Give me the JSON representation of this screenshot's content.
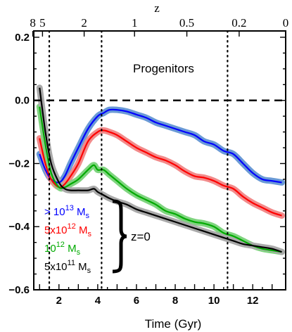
{
  "chart_data": {
    "type": "line",
    "title": "",
    "xlabel": "Time (Gyr)",
    "ylabel": "",
    "top_axis_label": "z",
    "top_ticks": [
      {
        "label": "8",
        "t": 0.65
      },
      {
        "label": "5",
        "t": 1.15
      },
      {
        "label": "2",
        "t": 3.3
      },
      {
        "label": "1",
        "t": 5.9
      },
      {
        "label": "0.5",
        "t": 8.6
      },
      {
        "label": "0.2",
        "t": 11.3
      },
      {
        "label": "0",
        "t": 13.7
      }
    ],
    "xlim": [
      0.7,
      13.7
    ],
    "ylim": [
      -0.6,
      0.22
    ],
    "x_ticks": [
      2,
      4,
      6,
      8,
      10,
      12
    ],
    "y_ticks": [
      -0.6,
      -0.4,
      -0.2,
      0.0,
      0.2
    ],
    "y_tick_labels": [
      "−0.6",
      "−0.4",
      "−0.2",
      "0.0",
      "0.2"
    ],
    "reference_line_y": 0.0,
    "vertical_lines_x": [
      1.5,
      4.2,
      10.7
    ],
    "annotation": "Progenitors",
    "bracket_label": "z=0",
    "series": [
      {
        "name_parts": [
          "> 10",
          "13",
          " M",
          "s"
        ],
        "color": "#0000ff",
        "band": "#6a9ad6",
        "x": [
          1.0,
          1.3,
          1.6,
          2.0,
          2.3,
          2.6,
          3.0,
          3.5,
          4.0,
          4.3,
          4.6,
          5.0,
          5.5,
          6.0,
          6.5,
          7.0,
          7.5,
          8.0,
          8.5,
          9.0,
          9.5,
          10.0,
          10.5,
          11.0,
          11.5,
          12.0,
          12.5,
          13.0,
          13.5
        ],
        "y": [
          -0.17,
          -0.22,
          -0.25,
          -0.26,
          -0.24,
          -0.2,
          -0.15,
          -0.09,
          -0.05,
          -0.04,
          -0.03,
          -0.03,
          -0.035,
          -0.045,
          -0.055,
          -0.07,
          -0.08,
          -0.09,
          -0.1,
          -0.11,
          -0.13,
          -0.14,
          -0.16,
          -0.17,
          -0.2,
          -0.23,
          -0.25,
          -0.255,
          -0.26
        ]
      },
      {
        "name_parts": [
          "5x10",
          "12",
          " M",
          "s"
        ],
        "color": "#ff0000",
        "band": "#f28b8b",
        "x": [
          1.0,
          1.3,
          1.6,
          2.0,
          2.3,
          2.6,
          3.0,
          3.5,
          4.0,
          4.3,
          4.6,
          5.0,
          5.5,
          6.0,
          6.5,
          7.0,
          7.5,
          8.0,
          8.5,
          9.0,
          9.5,
          10.0,
          10.5,
          11.0,
          11.5,
          12.0,
          12.5,
          13.0,
          13.5
        ],
        "y": [
          -0.12,
          -0.2,
          -0.25,
          -0.275,
          -0.265,
          -0.24,
          -0.2,
          -0.13,
          -0.1,
          -0.095,
          -0.1,
          -0.11,
          -0.13,
          -0.15,
          -0.165,
          -0.18,
          -0.19,
          -0.205,
          -0.225,
          -0.24,
          -0.245,
          -0.255,
          -0.27,
          -0.28,
          -0.305,
          -0.325,
          -0.34,
          -0.355,
          -0.365
        ]
      },
      {
        "name_parts": [
          "10",
          "12",
          " M",
          "s"
        ],
        "color": "#00aa00",
        "band": "#7fd47f",
        "x": [
          1.0,
          1.3,
          1.6,
          2.0,
          2.3,
          2.6,
          3.0,
          3.5,
          3.8,
          4.0,
          4.3,
          4.6,
          5.0,
          5.5,
          6.0,
          6.5,
          7.0,
          7.5,
          8.0,
          8.5,
          9.0,
          9.5,
          10.0,
          10.5,
          11.0,
          11.5,
          12.0,
          12.5,
          13.0,
          13.5
        ],
        "y": [
          -0.02,
          -0.14,
          -0.23,
          -0.275,
          -0.275,
          -0.265,
          -0.25,
          -0.22,
          -0.205,
          -0.22,
          -0.22,
          -0.235,
          -0.255,
          -0.28,
          -0.3,
          -0.315,
          -0.33,
          -0.35,
          -0.36,
          -0.375,
          -0.385,
          -0.39,
          -0.4,
          -0.42,
          -0.43,
          -0.445,
          -0.46,
          -0.47,
          -0.475,
          -0.48
        ]
      },
      {
        "name_parts": [
          "5x10",
          "11",
          " M",
          "s"
        ],
        "color": "#000000",
        "band": "#aaaaaa",
        "x": [
          1.0,
          1.3,
          1.6,
          2.0,
          2.3,
          2.6,
          3.0,
          3.5,
          3.8,
          4.0,
          4.3,
          4.6,
          5.0,
          5.5,
          6.0,
          6.5,
          7.0,
          7.5,
          8.0,
          8.5,
          9.0,
          9.5,
          10.0,
          10.5,
          11.0,
          11.5,
          12.0,
          12.5,
          13.0,
          13.5
        ],
        "y": [
          0.04,
          -0.1,
          -0.2,
          -0.26,
          -0.28,
          -0.285,
          -0.285,
          -0.285,
          -0.28,
          -0.29,
          -0.3,
          -0.31,
          -0.32,
          -0.33,
          -0.345,
          -0.355,
          -0.365,
          -0.375,
          -0.385,
          -0.395,
          -0.405,
          -0.415,
          -0.425,
          -0.435,
          -0.445,
          -0.455,
          -0.46,
          -0.465,
          -0.47,
          -0.48
        ]
      }
    ]
  }
}
